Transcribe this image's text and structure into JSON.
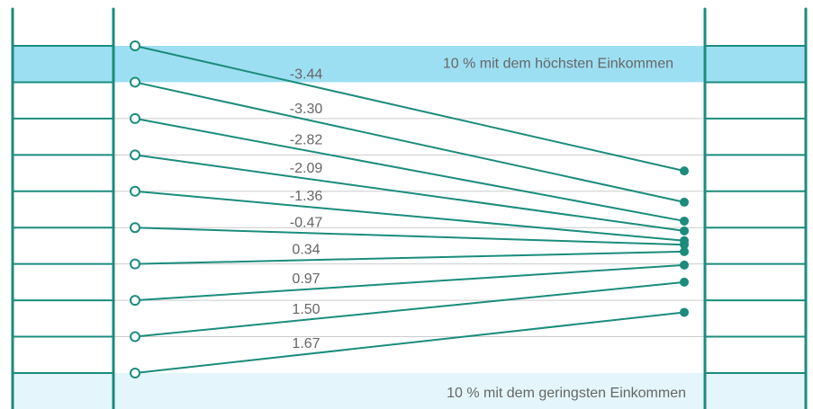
{
  "chart_data": {
    "type": "slope",
    "start": [
      9,
      8,
      7,
      6,
      5,
      4,
      3,
      2,
      1,
      0
    ],
    "values": [
      -3.44,
      -3.3,
      -2.82,
      -2.09,
      -1.36,
      -0.47,
      0.34,
      0.97,
      1.5,
      1.67
    ],
    "value_labels": [
      "-3.44",
      "-3.30",
      "-2.82",
      "-2.09",
      "-1.36",
      "-0.47",
      "0.34",
      "0.97",
      "1.50",
      "1.67"
    ],
    "ylim": [
      0,
      9
    ],
    "color": "#1b8c7c",
    "annotations": [
      {
        "text": "10 % mit dem höchsten Einkommen",
        "color": "#9ddff2"
      },
      {
        "text": "10 % mit dem geringsten Einkommen",
        "color": "#e4f5fb"
      }
    ]
  }
}
